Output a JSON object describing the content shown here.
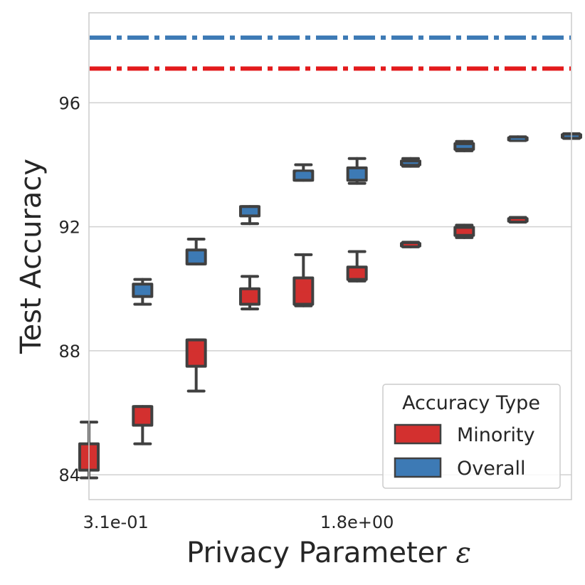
{
  "chart_data": {
    "type": "box",
    "title": "",
    "xlabel": "Privacy Parameter",
    "xlabel_symbol": "ε",
    "ylabel": "Test Accuracy",
    "ylim": [
      83.2,
      98.9
    ],
    "yticks": [
      84,
      88,
      92,
      96
    ],
    "xtick_labels": [
      {
        "label": "3.1e-01",
        "position": 0
      },
      {
        "label": "1.8e+00",
        "position": 4.5
      }
    ],
    "grid": true,
    "reference_lines": [
      {
        "series": "Overall",
        "value": 98.1,
        "color": "#3d7ab5",
        "style": "dashdot"
      },
      {
        "series": "Minority",
        "value": 97.1,
        "color": "#e31a1c",
        "style": "dashdot"
      }
    ],
    "legend": {
      "title": "Accuracy Type",
      "position": "lower right",
      "entries": [
        {
          "label": "Minority",
          "color": "#d3302f"
        },
        {
          "label": "Overall",
          "color": "#3d7ab5"
        }
      ]
    },
    "series": [
      {
        "name": "Minority",
        "color": "#d3302f",
        "boxes": [
          {
            "x": 0,
            "min": 83.9,
            "q1": 84.15,
            "median": 84.35,
            "q3": 85.0,
            "max": 85.7
          },
          {
            "x": 1,
            "min": 85.0,
            "q1": 85.6,
            "median": 86.0,
            "q3": 86.2,
            "max": 86.2
          },
          {
            "x": 2,
            "min": 86.7,
            "q1": 87.5,
            "median": 88.0,
            "q3": 88.35,
            "max": 88.35
          },
          {
            "x": 3,
            "min": 89.35,
            "q1": 89.5,
            "median": 89.75,
            "q3": 90.0,
            "max": 90.4
          },
          {
            "x": 4,
            "min": 89.45,
            "q1": 89.5,
            "median": 89.9,
            "q3": 90.35,
            "max": 91.1
          },
          {
            "x": 5,
            "min": 90.25,
            "q1": 90.3,
            "median": 90.55,
            "q3": 90.7,
            "max": 91.2
          },
          {
            "x": 6,
            "min": 91.35,
            "q1": 91.38,
            "median": 91.42,
            "q3": 91.46,
            "max": 91.5
          },
          {
            "x": 7,
            "min": 91.65,
            "q1": 91.72,
            "median": 91.82,
            "q3": 91.98,
            "max": 92.05
          },
          {
            "x": 8,
            "min": 92.15,
            "q1": 92.18,
            "median": 92.22,
            "q3": 92.26,
            "max": 92.3
          }
        ]
      },
      {
        "name": "Overall",
        "color": "#3d7ab5",
        "boxes": [
          {
            "x": 0,
            "min": 89.5,
            "q1": 89.75,
            "median": 89.95,
            "q3": 90.15,
            "max": 90.3
          },
          {
            "x": 1,
            "min": 90.8,
            "q1": 90.8,
            "median": 91.0,
            "q3": 91.25,
            "max": 91.6
          },
          {
            "x": 2,
            "min": 92.1,
            "q1": 92.35,
            "median": 92.5,
            "q3": 92.65,
            "max": 92.65
          },
          {
            "x": 3,
            "min": 93.5,
            "q1": 93.5,
            "median": 93.75,
            "q3": 93.8,
            "max": 94.0
          },
          {
            "x": 4,
            "min": 93.4,
            "q1": 93.5,
            "median": 93.7,
            "q3": 93.9,
            "max": 94.2
          },
          {
            "x": 5,
            "min": 93.95,
            "q1": 94.0,
            "median": 94.05,
            "q3": 94.12,
            "max": 94.2
          },
          {
            "x": 6,
            "min": 94.45,
            "q1": 94.5,
            "median": 94.6,
            "q3": 94.68,
            "max": 94.75
          },
          {
            "x": 7,
            "min": 94.78,
            "q1": 94.8,
            "median": 94.83,
            "q3": 94.87,
            "max": 94.9
          },
          {
            "x": 8,
            "min": 94.85,
            "q1": 94.88,
            "median": 94.92,
            "q3": 94.97,
            "max": 95.0
          }
        ]
      }
    ]
  }
}
